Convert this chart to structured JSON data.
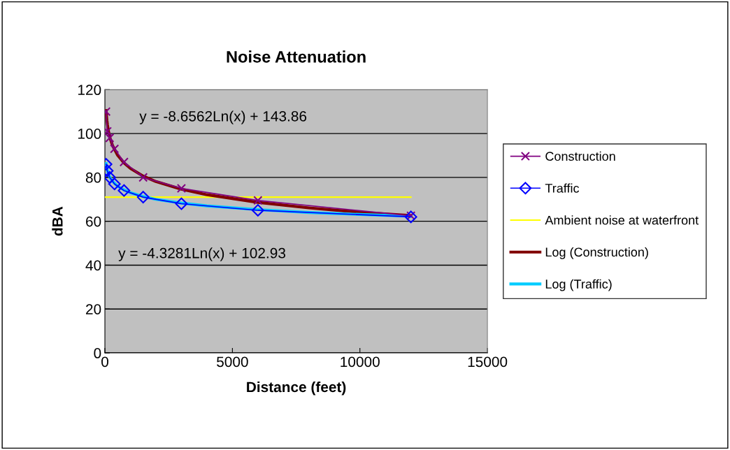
{
  "chart_data": {
    "type": "line",
    "title": "Noise Attenuation",
    "xlabel": "Distance (feet)",
    "ylabel": "dBA",
    "xlim": [
      0,
      15000
    ],
    "xticks": [
      0,
      5000,
      10000,
      15000
    ],
    "ylim": [
      0,
      120
    ],
    "yticks": [
      0,
      20,
      40,
      60,
      80,
      100,
      120
    ],
    "grid": "y",
    "legend": "right",
    "annotations": [
      "y = -8.6562Ln(x) + 143.86",
      "y = -4.3281Ln(x) + 102.93"
    ],
    "series": [
      {
        "name": "Construction",
        "marker": "cross",
        "color": "#800080",
        "x": [
          47,
          94,
          187.5,
          375,
          750,
          1500,
          3000,
          6000,
          12000
        ],
        "values": [
          110,
          101,
          98,
          93,
          87,
          80,
          75,
          69.5,
          62.5
        ]
      },
      {
        "name": "Traffic",
        "marker": "diamond",
        "color": "#0000ff",
        "x": [
          47,
          94,
          187.5,
          375,
          750,
          1500,
          3000,
          6000,
          12000
        ],
        "values": [
          86,
          83,
          80,
          77,
          74,
          71,
          68,
          65,
          62
        ]
      },
      {
        "name": "Ambient noise at waterfront",
        "marker": "none",
        "color": "#ffff00",
        "x": [
          0,
          12000
        ],
        "values": [
          71,
          71
        ]
      },
      {
        "name": "Log (Construction)",
        "marker": "none",
        "color": "#800000",
        "x": [
          47,
          60,
          80,
          100,
          150,
          200,
          300,
          500,
          750,
          1000,
          1500,
          2000,
          3000,
          4000,
          6000,
          8000,
          10000,
          12000
        ],
        "values": [
          110.5,
          108.4,
          105.9,
          104.0,
          100.5,
          98.0,
          94.5,
          90.1,
          86.6,
          84.1,
          80.6,
          78.1,
          74.6,
          72.1,
          68.6,
          66.1,
          64.1,
          62.6
        ]
      },
      {
        "name": "Log (Traffic)",
        "marker": "none",
        "color": "#00ccff",
        "x": [
          47,
          60,
          80,
          100,
          150,
          200,
          300,
          500,
          750,
          1000,
          1500,
          2000,
          3000,
          4000,
          6000,
          8000,
          10000,
          12000
        ],
        "values": [
          86.3,
          85.2,
          83.9,
          83.0,
          81.2,
          80.0,
          78.2,
          76.0,
          74.3,
          73.0,
          71.3,
          70.0,
          68.3,
          67.0,
          65.3,
          64.0,
          63.1,
          62.3
        ]
      }
    ]
  }
}
